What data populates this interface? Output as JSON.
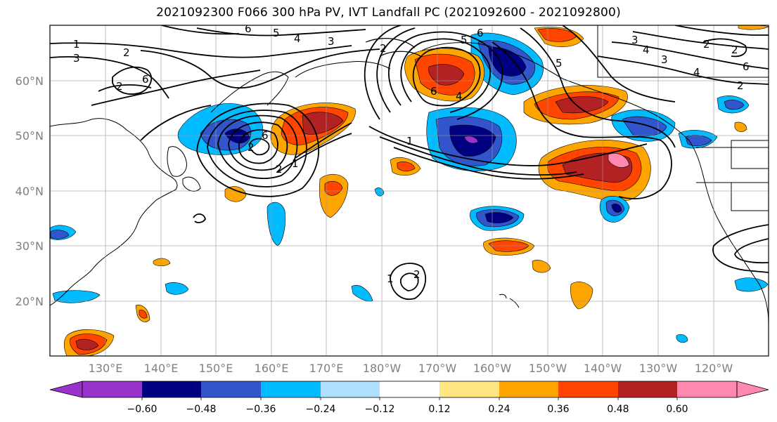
{
  "title": "2021092300 F066 300 hPa PV, IVT Landfall PC (2021092600 - 2021092800)",
  "lat_labels": [
    "60°N",
    "50°N",
    "40°N",
    "30°N",
    "20°N"
  ],
  "lon_labels": [
    "130°E",
    "140°E",
    "150°E",
    "160°E",
    "170°E",
    "180°W",
    "170°W",
    "160°W",
    "150°W",
    "140°W",
    "130°W",
    "120°W"
  ],
  "colorbar": {
    "tick_labels": [
      "−0.60",
      "−0.48",
      "−0.36",
      "−0.24",
      "−0.12",
      "0.12",
      "0.24",
      "0.36",
      "0.48",
      "0.60"
    ],
    "colors": [
      "#9933cc",
      "#000080",
      "#3355cc",
      "#00bbff",
      "#b0e0ff",
      "#ffffff",
      "#ffe680",
      "#ffa500",
      "#ff4500",
      "#b22222",
      "#ff88b0"
    ]
  },
  "contour_labels": [
    "1",
    "3",
    "2",
    "6",
    "5",
    "4",
    "3",
    "2",
    "6",
    "5",
    "6",
    "4",
    "3",
    "4",
    "2",
    "6",
    "5",
    "3",
    "4",
    "2",
    "2",
    "1",
    "2",
    "6",
    "1",
    "2",
    "2",
    "1",
    "6",
    "2"
  ]
}
